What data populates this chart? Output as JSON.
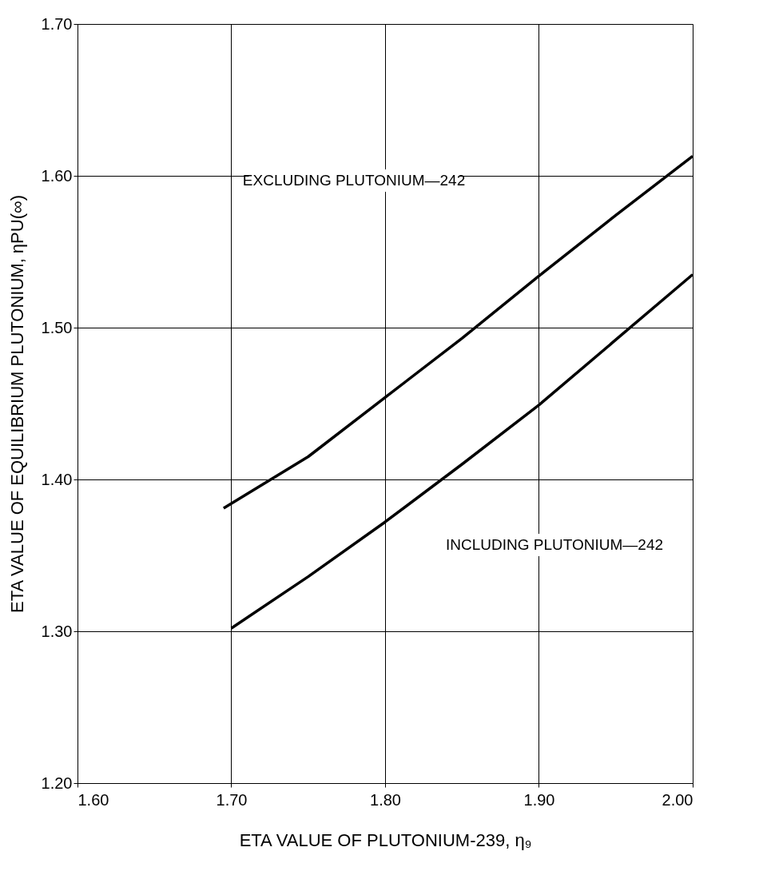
{
  "chart_data": {
    "type": "line",
    "xlabel": "ETA VALUE OF PLUTONIUM-239, η₉",
    "ylabel": "ETA VALUE OF EQUILIBRIUM PLUTONIUM, ηPU(∞)",
    "xlim": [
      1.6,
      2.0
    ],
    "xticks": [
      {
        "value": 1.6,
        "label": "1.60"
      },
      {
        "value": 1.7,
        "label": "1.70"
      },
      {
        "value": 1.8,
        "label": "1.80"
      },
      {
        "value": 1.9,
        "label": "1.90"
      },
      {
        "value": 2.0,
        "label": "2.00"
      }
    ],
    "ylim": [
      1.2,
      1.7
    ],
    "yticks": [
      {
        "value": 1.2,
        "label": "1.20"
      },
      {
        "value": 1.3,
        "label": "1.30"
      },
      {
        "value": 1.4,
        "label": "1.40"
      },
      {
        "value": 1.5,
        "label": "1.50"
      },
      {
        "value": 1.6,
        "label": "1.60"
      },
      {
        "value": 1.7,
        "label": "1.70"
      }
    ],
    "grid": true,
    "line_style": "solid",
    "marker": "none",
    "series": [
      {
        "color": "#000000",
        "x": [
          1.695,
          1.75,
          1.8,
          1.85,
          1.9,
          1.95,
          2.0
        ],
        "values": [
          1.381,
          1.415,
          1.454,
          1.493,
          1.534,
          1.574,
          1.613
        ]
      },
      {
        "color": "#000000",
        "x": [
          1.7,
          1.75,
          1.8,
          1.85,
          1.9,
          1.95,
          2.0
        ],
        "values": [
          1.302,
          1.336,
          1.372,
          1.41,
          1.449,
          1.492,
          1.535
        ]
      }
    ],
    "annotations": [
      "EXCLUDING PLUTONIUM—242",
      "INCLUDING PLUTONIUM—242"
    ]
  }
}
